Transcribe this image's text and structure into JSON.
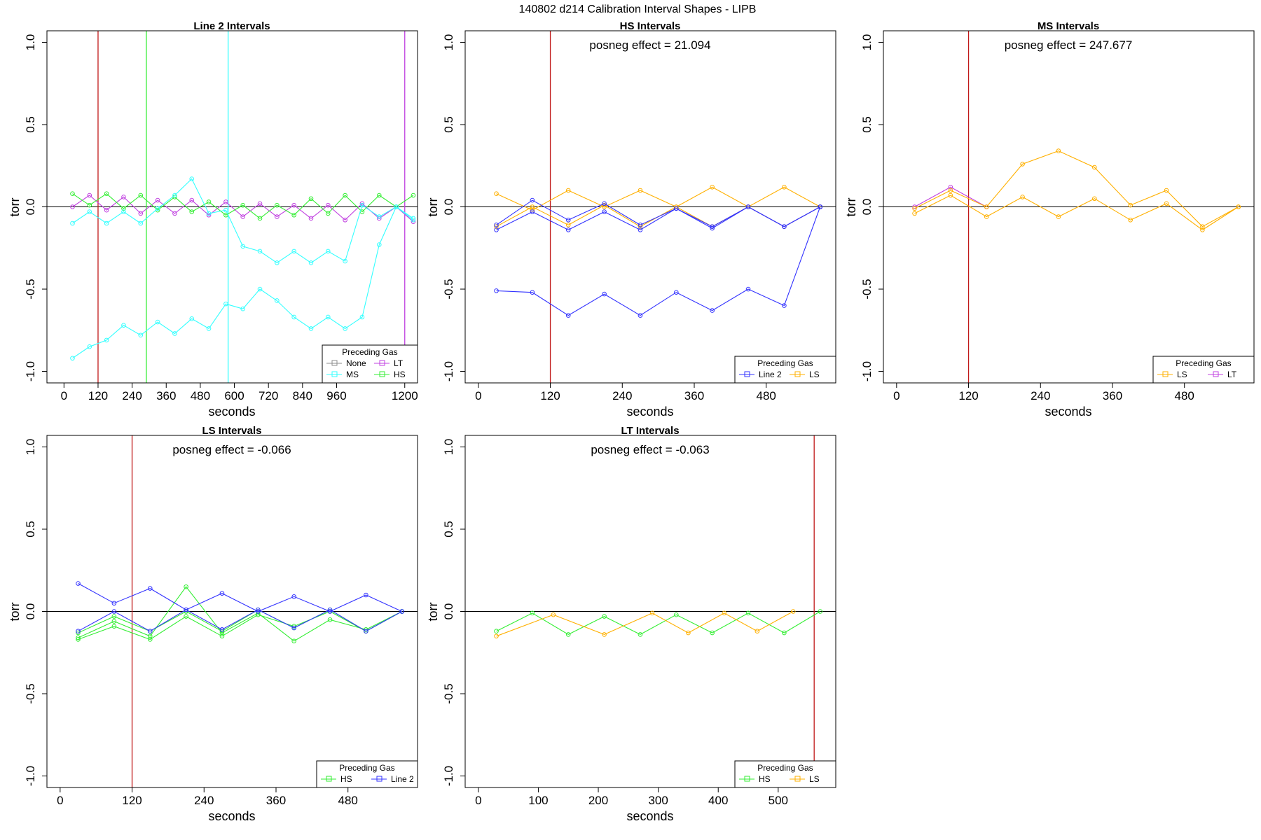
{
  "figure": {
    "title": "140802   d214   Calibration Interval Shapes - LIPB"
  },
  "colors": {
    "None": "#8c8c8c",
    "MS": "#33ffff",
    "LT": "#c040e0",
    "HS": "#33ee33",
    "Line 2": "#3333ff",
    "LS": "#ffb000",
    "vline_red": "#c01818",
    "hline": "#000000"
  },
  "chart_data": [
    {
      "type": "line",
      "title": "Line 2 Intervals",
      "xlabel": "seconds",
      "ylabel": "torr",
      "xlim": [
        -60,
        1245
      ],
      "ylim": [
        -1.07,
        1.07
      ],
      "xticks": [
        0,
        120,
        240,
        360,
        480,
        600,
        720,
        840,
        960,
        1200
      ],
      "yticks": [
        -1.0,
        -0.5,
        0.0,
        0.5,
        1.0
      ],
      "ytick_labels": [
        "-1.0",
        "-0.5",
        "0.0",
        "0.5",
        "1.0"
      ],
      "hline": 0,
      "vlines": [
        {
          "x": 120,
          "color": "#c01818"
        },
        {
          "x": 290,
          "color": "#33ee33"
        },
        {
          "x": 578,
          "color": "#33ffff"
        },
        {
          "x": 1200,
          "color": "#c040e0"
        }
      ],
      "annotation": "",
      "legend": {
        "title": "Preceding Gas",
        "items": [
          "None",
          "LT",
          "MS",
          "HS"
        ],
        "columns": 2,
        "position": "bottom-right"
      },
      "series": [
        {
          "name": "LT",
          "color": "#c040e0",
          "x": [
            30,
            90,
            150,
            210,
            270,
            330,
            390,
            450,
            510,
            570,
            630,
            690,
            750,
            810,
            870,
            930,
            990,
            1050,
            1110,
            1170,
            1230
          ],
          "y": [
            0.0,
            0.07,
            -0.02,
            0.06,
            -0.04,
            0.04,
            -0.04,
            0.04,
            -0.05,
            0.03,
            -0.06,
            0.02,
            -0.06,
            0.01,
            -0.07,
            0.01,
            -0.08,
            0.02,
            -0.07,
            0.0,
            -0.09
          ]
        },
        {
          "name": "HS",
          "color": "#33ee33",
          "x": [
            30,
            90,
            150,
            210,
            270,
            330,
            390,
            450,
            510,
            570,
            630,
            690,
            750,
            810,
            870,
            930,
            990,
            1050,
            1110,
            1170,
            1230
          ],
          "y": [
            0.08,
            0.01,
            0.08,
            -0.01,
            0.07,
            -0.02,
            0.06,
            -0.03,
            0.03,
            -0.05,
            0.01,
            -0.07,
            0.01,
            -0.05,
            0.05,
            -0.04,
            0.07,
            -0.03,
            0.07,
            0.0,
            0.07
          ]
        },
        {
          "name": "MS",
          "color": "#33ffff",
          "x": [
            30,
            90,
            150,
            210,
            270,
            330,
            390,
            450,
            510,
            570,
            630,
            690,
            750,
            810,
            870,
            930,
            990,
            1050,
            1110,
            1170,
            1230
          ],
          "y": [
            -0.1,
            -0.03,
            -0.1,
            -0.03,
            -0.1,
            -0.01,
            0.07,
            0.17,
            -0.04,
            -0.02,
            -0.24,
            -0.27,
            -0.34,
            -0.27,
            -0.34,
            -0.27,
            -0.33,
            0.01,
            -0.06,
            0.0,
            -0.08
          ]
        },
        {
          "name": "MS",
          "color": "#33ffff",
          "x": [
            30,
            90,
            150,
            210,
            270,
            330,
            390,
            450,
            510,
            570,
            630,
            690,
            750,
            810,
            870,
            930,
            990,
            1050,
            1110,
            1170,
            1230
          ],
          "y": [
            -0.92,
            -0.85,
            -0.81,
            -0.72,
            -0.78,
            -0.7,
            -0.77,
            -0.68,
            -0.74,
            -0.59,
            -0.62,
            -0.5,
            -0.57,
            -0.67,
            -0.74,
            -0.67,
            -0.74,
            -0.67,
            -0.23,
            0.0,
            -0.07
          ]
        }
      ]
    },
    {
      "type": "line",
      "title": "HS Intervals",
      "xlabel": "seconds",
      "ylabel": "torr",
      "xlim": [
        -22,
        596
      ],
      "ylim": [
        -1.07,
        1.07
      ],
      "xticks": [
        0,
        120,
        240,
        360,
        480
      ],
      "yticks": [
        -1.0,
        -0.5,
        0.0,
        0.5,
        1.0
      ],
      "ytick_labels": [
        "-1.0",
        "-0.5",
        "0.0",
        "0.5",
        "1.0"
      ],
      "hline": 0,
      "vlines": [
        {
          "x": 120,
          "color": "#c01818"
        }
      ],
      "annotation": "posneg effect = 21.094",
      "legend": {
        "title": "Preceding Gas",
        "items": [
          "Line 2",
          "LS"
        ],
        "columns": 2,
        "position": "bottom-right"
      },
      "series": [
        {
          "name": "LS",
          "color": "#ffb000",
          "x": [
            30,
            90,
            150,
            210,
            270,
            330,
            390,
            450,
            510,
            570
          ],
          "y": [
            0.08,
            -0.02,
            0.1,
            0.0,
            0.1,
            0.0,
            0.12,
            0.0,
            0.12,
            0.0
          ]
        },
        {
          "name": "LS",
          "color": "#ffb000",
          "x": [
            30,
            90,
            150,
            210,
            270,
            330,
            390,
            450,
            510,
            570
          ],
          "y": [
            -0.12,
            0.0,
            -0.11,
            0.01,
            -0.12,
            0.0,
            -0.12,
            0.0,
            -0.12,
            0.0
          ]
        },
        {
          "name": "Line 2",
          "color": "#3333ff",
          "x": [
            30,
            90,
            150,
            210,
            270,
            330,
            390,
            450,
            510,
            570
          ],
          "y": [
            -0.11,
            0.04,
            -0.08,
            0.02,
            -0.11,
            -0.01,
            -0.12,
            0.0,
            -0.12,
            0.0
          ]
        },
        {
          "name": "Line 2",
          "color": "#3333ff",
          "x": [
            30,
            90,
            150,
            210,
            270,
            330,
            390,
            450,
            510,
            570
          ],
          "y": [
            -0.14,
            -0.03,
            -0.14,
            -0.03,
            -0.14,
            -0.01,
            -0.13,
            0.0,
            -0.12,
            0.0
          ]
        },
        {
          "name": "Line 2",
          "color": "#3333ff",
          "x": [
            30,
            90,
            150,
            210,
            270,
            330,
            390,
            450,
            510,
            570
          ],
          "y": [
            -0.51,
            -0.52,
            -0.66,
            -0.53,
            -0.66,
            -0.52,
            -0.63,
            -0.5,
            -0.6,
            0.0
          ]
        }
      ]
    },
    {
      "type": "line",
      "title": "MS Intervals",
      "xlabel": "seconds",
      "ylabel": "torr",
      "xlim": [
        -22,
        596
      ],
      "ylim": [
        -1.07,
        1.07
      ],
      "xticks": [
        0,
        120,
        240,
        360,
        480
      ],
      "yticks": [
        -1.0,
        -0.5,
        0.0,
        0.5,
        1.0
      ],
      "ytick_labels": [
        "-1.0",
        "-0.5",
        "0.0",
        "0.5",
        "1.0"
      ],
      "hline": 0,
      "vlines": [
        {
          "x": 120,
          "color": "#c01818"
        }
      ],
      "annotation": "posneg effect = 247.677",
      "legend": {
        "title": "Preceding Gas",
        "items": [
          "LS",
          "LT"
        ],
        "columns": 2,
        "position": "bottom-right"
      },
      "series": [
        {
          "name": "LT",
          "color": "#c040e0",
          "x": [
            30,
            90,
            150
          ],
          "y": [
            0.0,
            0.12,
            0.0
          ]
        },
        {
          "name": "LS",
          "color": "#ffb000",
          "x": [
            30,
            90,
            150,
            210,
            270,
            330,
            390,
            450,
            510,
            570
          ],
          "y": [
            -0.01,
            0.1,
            0.0,
            0.26,
            0.34,
            0.24,
            0.01,
            0.1,
            -0.12,
            0.0
          ]
        },
        {
          "name": "LS",
          "color": "#ffb000",
          "x": [
            30,
            90,
            150,
            210,
            270,
            330,
            390,
            450,
            510,
            570
          ],
          "y": [
            -0.04,
            0.07,
            -0.06,
            0.06,
            -0.06,
            0.05,
            -0.08,
            0.02,
            -0.14,
            0.0
          ]
        }
      ]
    },
    {
      "type": "line",
      "title": "LS Intervals",
      "xlabel": "seconds",
      "ylabel": "torr",
      "xlim": [
        -22,
        596
      ],
      "ylim": [
        -1.07,
        1.07
      ],
      "xticks": [
        0,
        120,
        240,
        360,
        480
      ],
      "yticks": [
        -1.0,
        -0.5,
        0.0,
        0.5,
        1.0
      ],
      "ytick_labels": [
        "-1.0",
        "-0.5",
        "0.0",
        "0.5",
        "1.0"
      ],
      "hline": 0,
      "vlines": [
        {
          "x": 120,
          "color": "#c01818"
        }
      ],
      "annotation": "posneg effect = -0.066",
      "legend": {
        "title": "Preceding Gas",
        "items": [
          "HS",
          "Line 2"
        ],
        "columns": 2,
        "position": "bottom-right"
      },
      "series": [
        {
          "name": "HS",
          "color": "#33ee33",
          "x": [
            30,
            90,
            150,
            210,
            270,
            330,
            390,
            450,
            510,
            570
          ],
          "y": [
            -0.16,
            -0.06,
            -0.15,
            0.15,
            -0.13,
            -0.01,
            -0.18,
            -0.05,
            -0.11,
            0.0
          ]
        },
        {
          "name": "HS",
          "color": "#33ee33",
          "x": [
            30,
            90,
            150,
            210,
            270,
            330,
            390,
            450,
            510,
            570
          ],
          "y": [
            -0.17,
            -0.09,
            -0.17,
            -0.03,
            -0.15,
            -0.02,
            -0.09,
            0.0,
            -0.12,
            0.0
          ]
        },
        {
          "name": "HS",
          "color": "#33ee33",
          "x": [
            30,
            90,
            150,
            210,
            270,
            330,
            390,
            450,
            510,
            570
          ],
          "y": [
            -0.13,
            -0.03,
            -0.12,
            0.0,
            -0.12,
            0.01,
            -0.1,
            0.01,
            -0.12,
            0.0
          ]
        },
        {
          "name": "Line 2",
          "color": "#3333ff",
          "x": [
            30,
            90,
            150,
            210,
            270,
            330,
            390,
            450,
            510,
            570
          ],
          "y": [
            0.17,
            0.05,
            0.14,
            0.01,
            0.11,
            0.0,
            0.09,
            0.0,
            0.1,
            0.0
          ]
        },
        {
          "name": "Line 2",
          "color": "#3333ff",
          "x": [
            30,
            90,
            150,
            210,
            270,
            330,
            390,
            450,
            510,
            570
          ],
          "y": [
            -0.12,
            0.0,
            -0.12,
            0.01,
            -0.11,
            0.01,
            -0.1,
            0.01,
            -0.12,
            0.0
          ]
        }
      ]
    },
    {
      "type": "line",
      "title": "LT Intervals",
      "xlabel": "seconds",
      "ylabel": "torr",
      "xlim": [
        -22,
        596
      ],
      "ylim": [
        -1.07,
        1.07
      ],
      "xticks": [
        0,
        100,
        200,
        300,
        400,
        500
      ],
      "yticks": [
        -1.0,
        -0.5,
        0.0,
        0.5,
        1.0
      ],
      "ytick_labels": [
        "-1.0",
        "-0.5",
        "0.0",
        "0.5",
        "1.0"
      ],
      "hline": 0,
      "vlines": [
        {
          "x": 560,
          "color": "#c01818"
        }
      ],
      "annotation": "posneg effect = -0.063",
      "legend": {
        "title": "Preceding Gas",
        "items": [
          "HS",
          "LS"
        ],
        "columns": 2,
        "position": "bottom-right"
      },
      "series": [
        {
          "name": "HS",
          "color": "#33ee33",
          "x": [
            30,
            90,
            150,
            210,
            270,
            330,
            390,
            450,
            510,
            570
          ],
          "y": [
            -0.12,
            -0.01,
            -0.14,
            -0.03,
            -0.14,
            -0.02,
            -0.13,
            -0.01,
            -0.13,
            0.0
          ]
        },
        {
          "name": "LS",
          "color": "#ffb000",
          "x": [
            30,
            125,
            210,
            290,
            350,
            410,
            465,
            525
          ],
          "y": [
            -0.15,
            -0.02,
            -0.14,
            -0.01,
            -0.13,
            -0.01,
            -0.12,
            0.0
          ]
        }
      ]
    }
  ]
}
